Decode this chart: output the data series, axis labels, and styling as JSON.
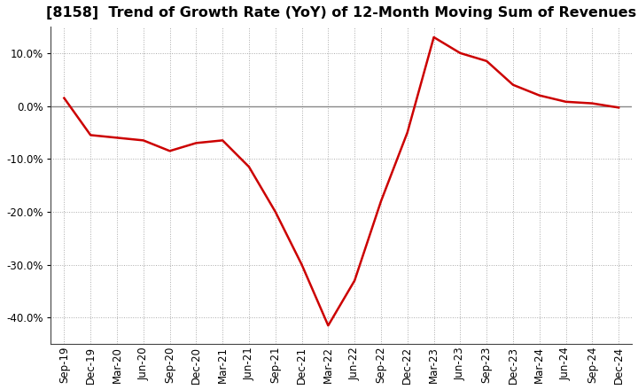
{
  "title": "[8158]  Trend of Growth Rate (YoY) of 12-Month Moving Sum of Revenues",
  "title_fontsize": 11.5,
  "line_color": "#cc0000",
  "line_width": 1.8,
  "background_color": "#ffffff",
  "plot_bg_color": "#ffffff",
  "grid_color": "#aaaaaa",
  "zero_line_color": "#888888",
  "ylim": [
    -0.45,
    0.15
  ],
  "yticks": [
    -0.4,
    -0.3,
    -0.2,
    -0.1,
    0.0,
    0.1
  ],
  "labels": [
    "Sep-19",
    "Dec-19",
    "Mar-20",
    "Jun-20",
    "Sep-20",
    "Dec-20",
    "Mar-21",
    "Jun-21",
    "Sep-21",
    "Dec-21",
    "Mar-22",
    "Jun-22",
    "Sep-22",
    "Dec-22",
    "Mar-23",
    "Jun-23",
    "Sep-23",
    "Dec-23",
    "Mar-24",
    "Jun-24",
    "Sep-24",
    "Dec-24"
  ],
  "values": [
    0.015,
    -0.055,
    -0.06,
    -0.065,
    -0.085,
    -0.07,
    -0.065,
    -0.115,
    -0.2,
    -0.3,
    -0.415,
    -0.33,
    -0.18,
    -0.05,
    0.13,
    0.1,
    0.085,
    0.04,
    0.02,
    0.008,
    0.005,
    -0.003
  ],
  "tick_fontsize": 8.5,
  "ylabel_fontsize": 8.5
}
